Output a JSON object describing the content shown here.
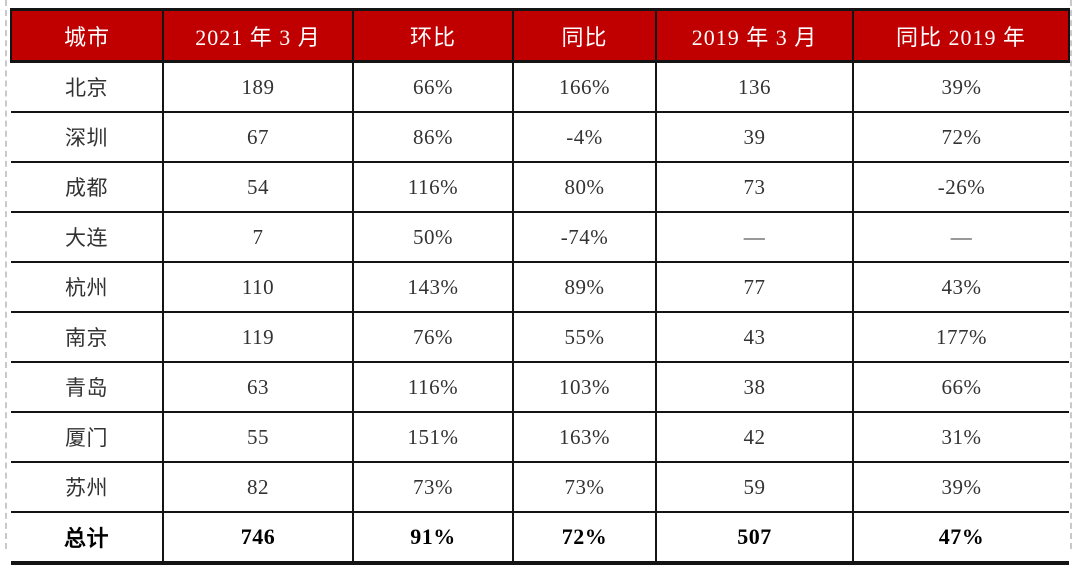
{
  "table": {
    "columns": [
      "城市",
      "2021 年 3 月",
      "环比",
      "同比",
      "2019 年 3 月",
      "同比 2019 年"
    ],
    "rows": [
      [
        "北京",
        "189",
        "66%",
        "166%",
        "136",
        "39%"
      ],
      [
        "深圳",
        "67",
        "86%",
        "-4%",
        "39",
        "72%"
      ],
      [
        "成都",
        "54",
        "116%",
        "80%",
        "73",
        "-26%"
      ],
      [
        "大连",
        "7",
        "50%",
        "-74%",
        "—",
        "—"
      ],
      [
        "杭州",
        "110",
        "143%",
        "89%",
        "77",
        "43%"
      ],
      [
        "南京",
        "119",
        "76%",
        "55%",
        "43",
        "177%"
      ],
      [
        "青岛",
        "63",
        "116%",
        "103%",
        "38",
        "66%"
      ],
      [
        "厦门",
        "55",
        "151%",
        "163%",
        "42",
        "31%"
      ],
      [
        "苏州",
        "82",
        "73%",
        "73%",
        "59",
        "39%"
      ],
      [
        "总计",
        "746",
        "91%",
        "72%",
        "507",
        "47%"
      ]
    ]
  },
  "colors": {
    "header_bg": "#c00000",
    "header_text": "#ffffff",
    "border": "#141414",
    "body_text": "#333333",
    "marquee_dash": "#c9c9c9"
  },
  "chart_data": {
    "type": "table",
    "title": "",
    "columns": [
      "城市",
      "2021年3月",
      "环比",
      "同比",
      "2019年3月",
      "同比2019年"
    ],
    "rows": [
      {
        "city": "北京",
        "mar_2021": 189,
        "mom": "66%",
        "yoy": "166%",
        "mar_2019": 136,
        "vs_2019": "39%"
      },
      {
        "city": "深圳",
        "mar_2021": 67,
        "mom": "86%",
        "yoy": "-4%",
        "mar_2019": 39,
        "vs_2019": "72%"
      },
      {
        "city": "成都",
        "mar_2021": 54,
        "mom": "116%",
        "yoy": "80%",
        "mar_2019": 73,
        "vs_2019": "-26%"
      },
      {
        "city": "大连",
        "mar_2021": 7,
        "mom": "50%",
        "yoy": "-74%",
        "mar_2019": null,
        "vs_2019": null
      },
      {
        "city": "杭州",
        "mar_2021": 110,
        "mom": "143%",
        "yoy": "89%",
        "mar_2019": 77,
        "vs_2019": "43%"
      },
      {
        "city": "南京",
        "mar_2021": 119,
        "mom": "76%",
        "yoy": "55%",
        "mar_2019": 43,
        "vs_2019": "177%"
      },
      {
        "city": "青岛",
        "mar_2021": 63,
        "mom": "116%",
        "yoy": "103%",
        "mar_2019": 38,
        "vs_2019": "66%"
      },
      {
        "city": "厦门",
        "mar_2021": 55,
        "mom": "151%",
        "yoy": "163%",
        "mar_2019": 42,
        "vs_2019": "31%"
      },
      {
        "city": "苏州",
        "mar_2021": 82,
        "mom": "73%",
        "yoy": "73%",
        "mar_2019": 59,
        "vs_2019": "39%"
      },
      {
        "city": "总计",
        "mar_2021": 746,
        "mom": "91%",
        "yoy": "72%",
        "mar_2019": 507,
        "vs_2019": "47%"
      }
    ]
  }
}
